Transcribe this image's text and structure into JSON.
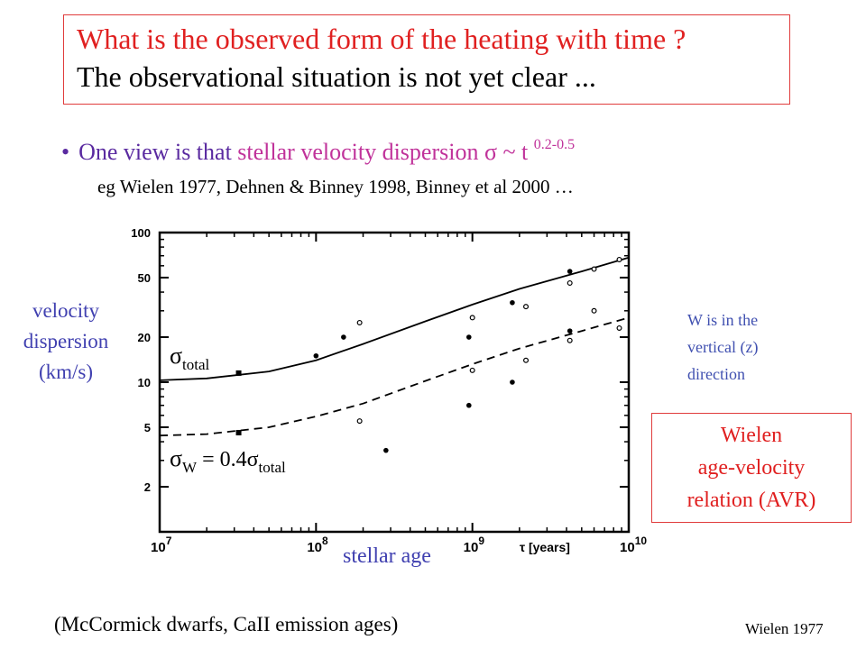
{
  "title": {
    "line1": "What is the observed  form of the heating with time ?",
    "line2": "The observational  situation  is not yet clear ..."
  },
  "bullet": {
    "symbol": "•",
    "text_start": "One view is that ",
    "text_pink": "stellar velocity dispersion   σ ~ t ",
    "exponent": "0.2-0.5"
  },
  "references": "eg Wielen 1977,  Dehnen & Binney 1998, Binney et al 2000 …",
  "ylabel_lines": [
    "velocity",
    "dispersion",
    "(km/s)"
  ],
  "w_note_lines": [
    "W is in the",
    "vertical (z)",
    "direction"
  ],
  "wielen_box_lines": [
    "Wielen",
    "age-velocity",
    "relation (AVR)"
  ],
  "stellar_age_label": "stellar age",
  "footnote": "(McCormick dwarfs, CaII emission ages)",
  "credit": "Wielen 1977",
  "colors": {
    "accent_red": "#e02020",
    "label_blue": "#4040b0",
    "bullet_purple": "#5a2aa0",
    "bullet_pink": "#c0329a"
  },
  "chart_data": {
    "type": "scatter",
    "x_scale": "log",
    "y_scale": "log",
    "xlim": [
      10000000,
      10000000000
    ],
    "ylim": [
      1,
      100
    ],
    "x_ticks": [
      {
        "value": 10000000,
        "base": "10",
        "exp": "7"
      },
      {
        "value": 100000000,
        "base": "10",
        "exp": "8"
      },
      {
        "value": 1000000000,
        "base": "10",
        "exp": "9"
      },
      {
        "value": 10000000000,
        "base": "10",
        "exp": "10"
      }
    ],
    "x_unit_label": "τ [years]",
    "y_ticks": [
      {
        "value": 2,
        "label": "2"
      },
      {
        "value": 5,
        "label": "5"
      },
      {
        "value": 10,
        "label": "10"
      },
      {
        "value": 20,
        "label": "20"
      },
      {
        "value": 50,
        "label": "50"
      },
      {
        "value": 100,
        "label": "100"
      }
    ],
    "series": [
      {
        "marker": "filled-circle",
        "points": [
          [
            100000000,
            15
          ],
          [
            150000000,
            20
          ],
          [
            280000000,
            3.5
          ],
          [
            950000000,
            20
          ],
          [
            950000000,
            7
          ],
          [
            1800000000,
            34
          ],
          [
            1800000000,
            10
          ],
          [
            4200000000,
            55
          ],
          [
            4200000000,
            22
          ]
        ]
      },
      {
        "marker": "open-circle",
        "points": [
          [
            190000000,
            25
          ],
          [
            190000000,
            5.5
          ],
          [
            1000000000,
            27
          ],
          [
            1000000000,
            12
          ],
          [
            2200000000,
            32
          ],
          [
            2200000000,
            14
          ],
          [
            4200000000,
            46
          ],
          [
            4200000000,
            19
          ],
          [
            6000000000,
            57
          ],
          [
            6000000000,
            30
          ],
          [
            8700000000,
            66
          ],
          [
            8700000000,
            23
          ]
        ]
      },
      {
        "marker": "filled-square",
        "points": [
          [
            32000000,
            11.5
          ],
          [
            32000000,
            4.6
          ]
        ]
      }
    ],
    "curves": [
      {
        "label_sym": "σ",
        "label_sub": "total",
        "style": "solid",
        "points": [
          [
            10000000,
            10.3
          ],
          [
            20000000,
            10.6
          ],
          [
            50000000,
            11.8
          ],
          [
            100000000,
            14
          ],
          [
            200000000,
            18
          ],
          [
            500000000,
            25.5
          ],
          [
            1000000000,
            33
          ],
          [
            2000000000,
            42
          ],
          [
            5000000000,
            55
          ],
          [
            10000000000,
            68
          ]
        ]
      },
      {
        "label_sym": "σ",
        "label_sub": "W",
        "label_mid": " = 0.4σ",
        "label_sub2": "total",
        "style": "dashed",
        "points": [
          [
            10000000,
            4.4
          ],
          [
            20000000,
            4.5
          ],
          [
            50000000,
            5
          ],
          [
            100000000,
            5.9
          ],
          [
            200000000,
            7.2
          ],
          [
            500000000,
            10.2
          ],
          [
            1000000000,
            13.2
          ],
          [
            2000000000,
            16.8
          ],
          [
            5000000000,
            22
          ],
          [
            10000000000,
            27
          ]
        ]
      }
    ]
  }
}
